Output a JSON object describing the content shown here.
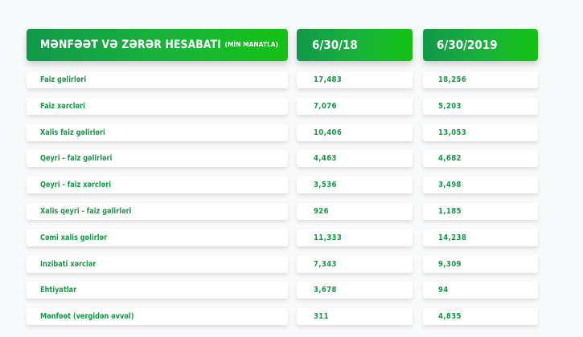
{
  "header": {
    "title": "MƏNFƏƏT VƏ ZƏRƏR HESABATI",
    "unit": "(MİN MANATLA)",
    "col1": "6/30/18",
    "col2": "6/30/2019"
  },
  "rows": [
    {
      "label": "Faiz gəlirləri",
      "v1": "17,483",
      "v2": "18,256"
    },
    {
      "label": "Faiz xərcləri",
      "v1": "7,076",
      "v2": "5,203"
    },
    {
      "label": "Xalis faiz gəlirləri",
      "v1": "10,406",
      "v2": "13,053"
    },
    {
      "label": "Qeyri - faiz gəlirləri",
      "v1": "4,463",
      "v2": "4,682"
    },
    {
      "label": "Qeyri - faiz xərcləri",
      "v1": "3,536",
      "v2": "3,498"
    },
    {
      "label": "Xalis qeyri - faiz gəlirləri",
      "v1": "926",
      "v2": "1,185"
    },
    {
      "label": "Cəmi xalis gəlirlər",
      "v1": "11,333",
      "v2": "14,238"
    },
    {
      "label": "İnzibati xərclər",
      "v1": "7,343",
      "v2": "9,309"
    },
    {
      "label": "Ehtiyatlar",
      "v1": "3,678",
      "v2": "94"
    },
    {
      "label": "Mənfəət (vergidən əvvəl)",
      "v1": "311",
      "v2": "4,835"
    }
  ],
  "colors": {
    "accent": "#139a45",
    "gradient_start": "#12984a",
    "gradient_end": "#13c213",
    "background": "#f7f9fa"
  }
}
